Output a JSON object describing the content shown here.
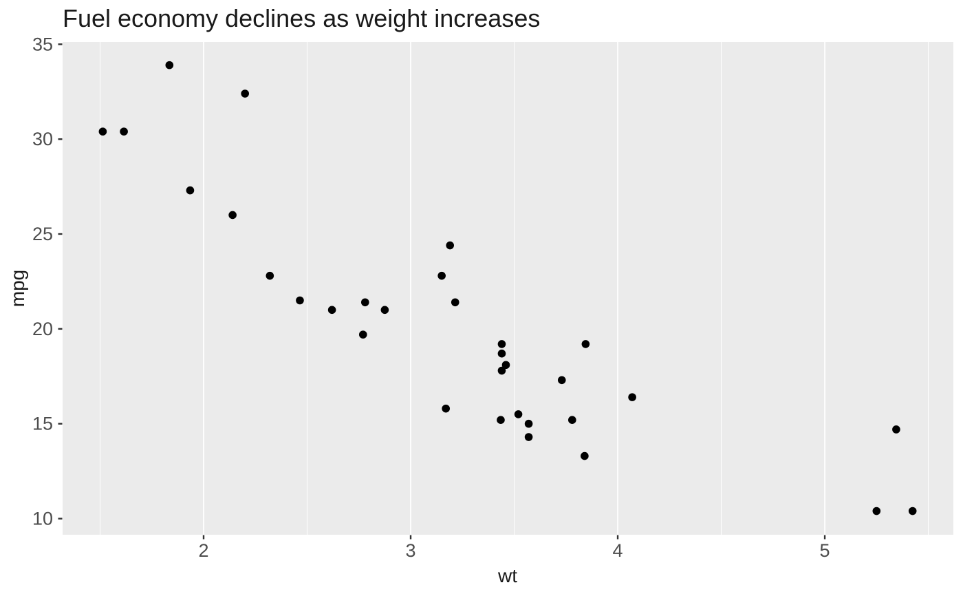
{
  "chart_data": {
    "type": "scatter",
    "title": "Fuel economy declines as weight increases",
    "xlabel": "wt",
    "ylabel": "mpg",
    "x_ticks": [
      2,
      3,
      4,
      5
    ],
    "y_ticks": [
      10,
      15,
      20,
      25,
      30,
      35
    ],
    "x_major_gridlines": [
      2,
      3,
      4,
      5
    ],
    "x_minor_gridlines": [
      1.5,
      2.5,
      3.5,
      4.5,
      5.5
    ],
    "y_gridlines": "none",
    "xlim": [
      1.319,
      5.621
    ],
    "ylim": [
      9.15,
      35.12
    ],
    "grid": "vertical-only",
    "legend": "none",
    "points": [
      {
        "wt": 2.62,
        "mpg": 21.0
      },
      {
        "wt": 2.875,
        "mpg": 21.0
      },
      {
        "wt": 2.32,
        "mpg": 22.8
      },
      {
        "wt": 3.215,
        "mpg": 21.4
      },
      {
        "wt": 3.44,
        "mpg": 18.7
      },
      {
        "wt": 3.46,
        "mpg": 18.1
      },
      {
        "wt": 3.57,
        "mpg": 14.3
      },
      {
        "wt": 3.19,
        "mpg": 24.4
      },
      {
        "wt": 3.15,
        "mpg": 22.8
      },
      {
        "wt": 3.44,
        "mpg": 19.2
      },
      {
        "wt": 3.44,
        "mpg": 17.8
      },
      {
        "wt": 4.07,
        "mpg": 16.4
      },
      {
        "wt": 3.73,
        "mpg": 17.3
      },
      {
        "wt": 3.78,
        "mpg": 15.2
      },
      {
        "wt": 5.25,
        "mpg": 10.4
      },
      {
        "wt": 5.424,
        "mpg": 10.4
      },
      {
        "wt": 5.345,
        "mpg": 14.7
      },
      {
        "wt": 2.2,
        "mpg": 32.4
      },
      {
        "wt": 1.615,
        "mpg": 30.4
      },
      {
        "wt": 1.835,
        "mpg": 33.9
      },
      {
        "wt": 2.465,
        "mpg": 21.5
      },
      {
        "wt": 3.52,
        "mpg": 15.5
      },
      {
        "wt": 3.435,
        "mpg": 15.2
      },
      {
        "wt": 3.84,
        "mpg": 13.3
      },
      {
        "wt": 3.845,
        "mpg": 19.2
      },
      {
        "wt": 1.935,
        "mpg": 27.3
      },
      {
        "wt": 2.14,
        "mpg": 26.0
      },
      {
        "wt": 1.513,
        "mpg": 30.4
      },
      {
        "wt": 3.17,
        "mpg": 15.8
      },
      {
        "wt": 2.77,
        "mpg": 19.7
      },
      {
        "wt": 3.57,
        "mpg": 15.0
      },
      {
        "wt": 2.78,
        "mpg": 21.4
      }
    ],
    "colors": {
      "plot_background": "#FFFFFF",
      "panel_background": "#EBEBEB",
      "gridline": "#FFFFFF",
      "point": "#000000",
      "axis_text": "#4D4D4D",
      "axis_ticks": "#333333",
      "title_text": "#1A1A1A"
    }
  }
}
